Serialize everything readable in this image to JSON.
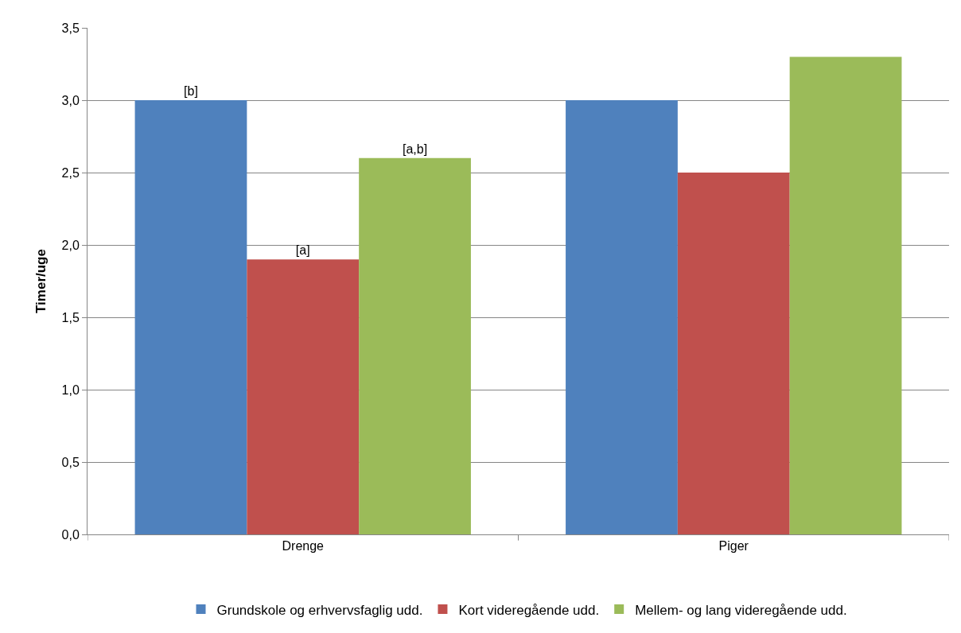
{
  "chart_data": {
    "type": "bar",
    "ylabel": "Timer/uge",
    "categories": [
      "Drenge",
      "Piger"
    ],
    "series": [
      {
        "name": "Grundskole og erhvervsfaglig udd.",
        "color": "#4f81bd",
        "values": [
          3.0,
          3.0
        ],
        "value_labels": [
          "[b]",
          null
        ]
      },
      {
        "name": "Kort videregående udd.",
        "color": "#c0504d",
        "values": [
          1.9,
          2.5
        ],
        "value_labels": [
          "[a]",
          null
        ]
      },
      {
        "name": "Mellem- og lang videregående udd.",
        "color": "#9bbb59",
        "values": [
          2.6,
          3.3
        ],
        "value_labels": [
          "[a,b]",
          null
        ]
      }
    ],
    "ylim": [
      0,
      3.5
    ],
    "yticks": [
      {
        "value": 0,
        "label": "0,0"
      },
      {
        "value": 0.5,
        "label": "0,5"
      },
      {
        "value": 1,
        "label": "1,0"
      },
      {
        "value": 1.5,
        "label": "1,5"
      },
      {
        "value": 2,
        "label": "2,0"
      },
      {
        "value": 2.5,
        "label": "2,5"
      },
      {
        "value": 3,
        "label": "3,0"
      },
      {
        "value": 3.5,
        "label": "3,5"
      }
    ],
    "grid": "y",
    "legend": "bottom"
  }
}
